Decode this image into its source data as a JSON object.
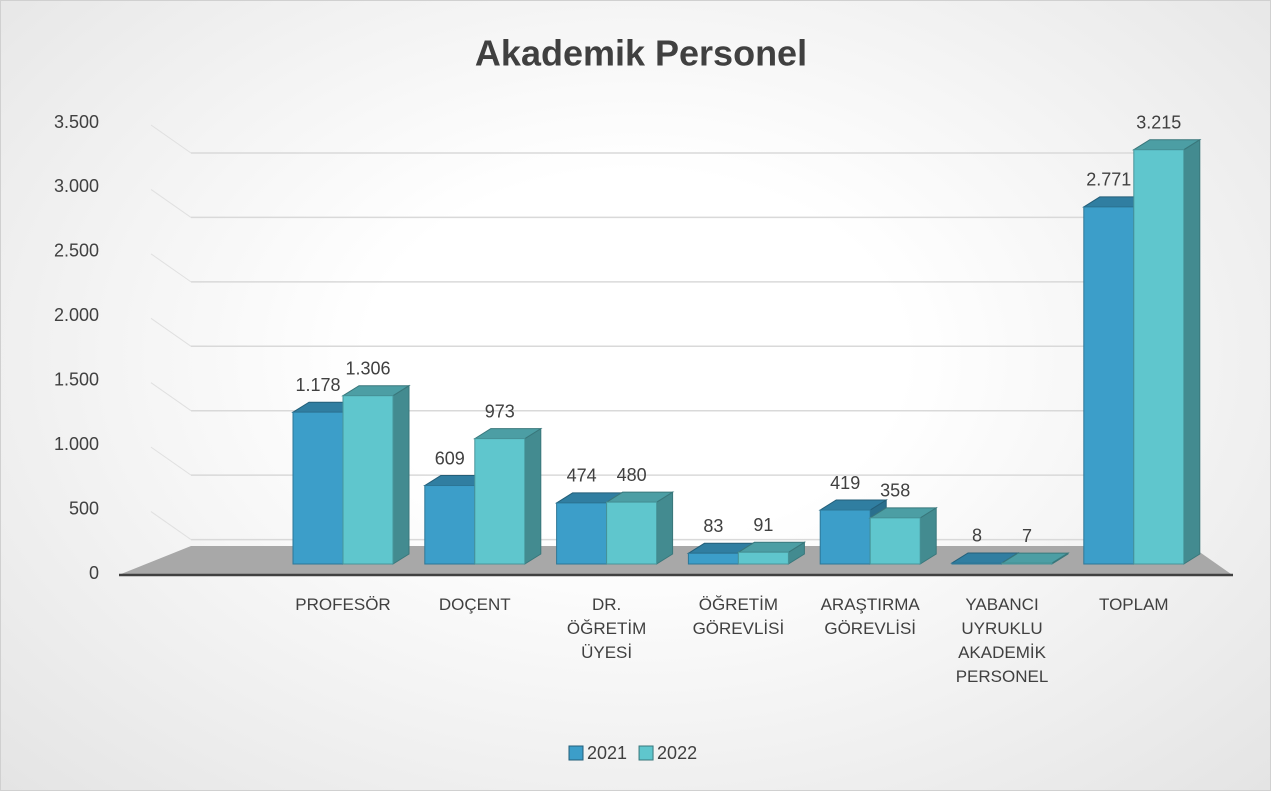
{
  "chart_data": {
    "type": "bar3d",
    "title": "Akademik Personel",
    "categories": [
      "PROFESÖR",
      "DOÇENT",
      "DR. ÖĞRETİM ÜYESİ",
      "ÖĞRETİM GÖREVLİSİ",
      "ARAŞTIRMA GÖREVLİSİ",
      "YABANCI UYRUKLU AKADEMİK PERSONEL",
      "TOPLAM"
    ],
    "series": [
      {
        "name": "2021",
        "color": "#3c9ec9",
        "values": [
          1178,
          609,
          474,
          83,
          419,
          8,
          2771
        ],
        "value_labels": [
          "1.178",
          "609",
          "474",
          "83",
          "419",
          "8",
          "2.771"
        ]
      },
      {
        "name": "2022",
        "color": "#5fc6cd",
        "values": [
          1306,
          973,
          480,
          91,
          358,
          7,
          3215
        ],
        "value_labels": [
          "1.306",
          "973",
          "480",
          "91",
          "358",
          "7",
          "3.215"
        ]
      }
    ],
    "ylim": [
      0,
      3500
    ],
    "yticks": [
      0,
      500,
      {
        "value": 1000,
        "label": "1.000"
      },
      {
        "value": 1500,
        "label": "1.500"
      },
      {
        "value": 2000,
        "label": "2.000"
      },
      {
        "value": 2500,
        "label": "2.500"
      },
      {
        "value": 3000,
        "label": "3.000"
      },
      {
        "value": 3500,
        "label": "3.500"
      }
    ],
    "grid": true,
    "legend": "bottom"
  }
}
